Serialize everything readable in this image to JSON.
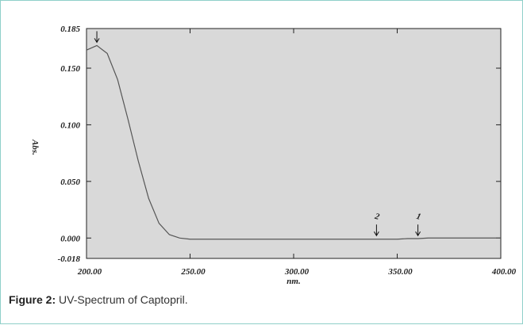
{
  "chart_data": {
    "type": "line",
    "x_label": "nm.",
    "y_label": "Abs.",
    "series": [
      {
        "name": "Captopril",
        "color": "#555555",
        "x": [
          200,
          205,
          210,
          215,
          220,
          225,
          230,
          235,
          240,
          245,
          250,
          255,
          260,
          265,
          270,
          275,
          280,
          285,
          290,
          295,
          300,
          305,
          310,
          315,
          320,
          325,
          330,
          335,
          340,
          345,
          350,
          355,
          360,
          365,
          370,
          375,
          380,
          385,
          390,
          395,
          400
        ],
        "values": [
          0.166,
          0.17,
          0.163,
          0.14,
          0.105,
          0.068,
          0.035,
          0.013,
          0.003,
          0.0,
          -0.001,
          -0.001,
          -0.001,
          -0.001,
          -0.001,
          -0.001,
          -0.001,
          -0.001,
          -0.001,
          -0.001,
          -0.001,
          -0.001,
          -0.001,
          -0.001,
          -0.001,
          -0.001,
          -0.001,
          -0.001,
          -0.001,
          -0.001,
          -0.001,
          -0.0005,
          -0.0005,
          0,
          0,
          0,
          0,
          0,
          0,
          0,
          0
        ]
      }
    ],
    "xlim": [
      200,
      400
    ],
    "xticks": [
      {
        "value": 200,
        "label": "200.00"
      },
      {
        "value": 250,
        "label": "250.00"
      },
      {
        "value": 300,
        "label": "300.00"
      },
      {
        "value": 350,
        "label": "350.00"
      },
      {
        "value": 400,
        "label": "400.00"
      }
    ],
    "ylim": [
      -0.018,
      0.185
    ],
    "yticks": [
      {
        "value": -0.018,
        "label": "-0.018"
      },
      {
        "value": 0,
        "label": "0.000"
      },
      {
        "value": 0.05,
        "label": "0.050"
      },
      {
        "value": 0.1,
        "label": "0.100"
      },
      {
        "value": 0.15,
        "label": "0.150"
      },
      {
        "value": 0.185,
        "label": "0.185"
      }
    ],
    "peak_markers": [
      {
        "x": 205,
        "y": 0.17
      }
    ],
    "labeled_markers": [
      {
        "x": 340,
        "y": 0,
        "label": "2"
      },
      {
        "x": 360,
        "y": 0,
        "label": "1"
      }
    ]
  },
  "caption": {
    "label": "Figure 2:",
    "text": " UV-Spectrum of Captopril."
  }
}
